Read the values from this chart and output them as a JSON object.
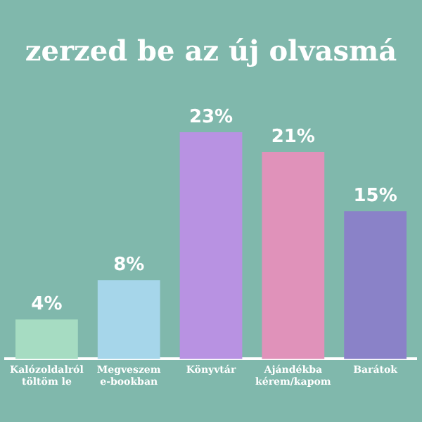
{
  "chart_data": {
    "type": "bar",
    "title": "zerzed be az új olvasmá",
    "categories": [
      "Kalózoldalról töltöm le",
      "Megveszem e-bookban",
      "Könyvtár",
      "Ajándékba kérem/kapom",
      "Barátok"
    ],
    "values": [
      4,
      8,
      23,
      21,
      15
    ],
    "colors": [
      "#a6dcc2",
      "#a6d6ea",
      "#b892e2",
      "#e092ba",
      "#8a82c8"
    ],
    "value_labels": [
      "4%",
      "8%",
      "23%",
      "21%",
      "15%"
    ],
    "grid": false,
    "legend": false,
    "tick_labels": "x"
  }
}
